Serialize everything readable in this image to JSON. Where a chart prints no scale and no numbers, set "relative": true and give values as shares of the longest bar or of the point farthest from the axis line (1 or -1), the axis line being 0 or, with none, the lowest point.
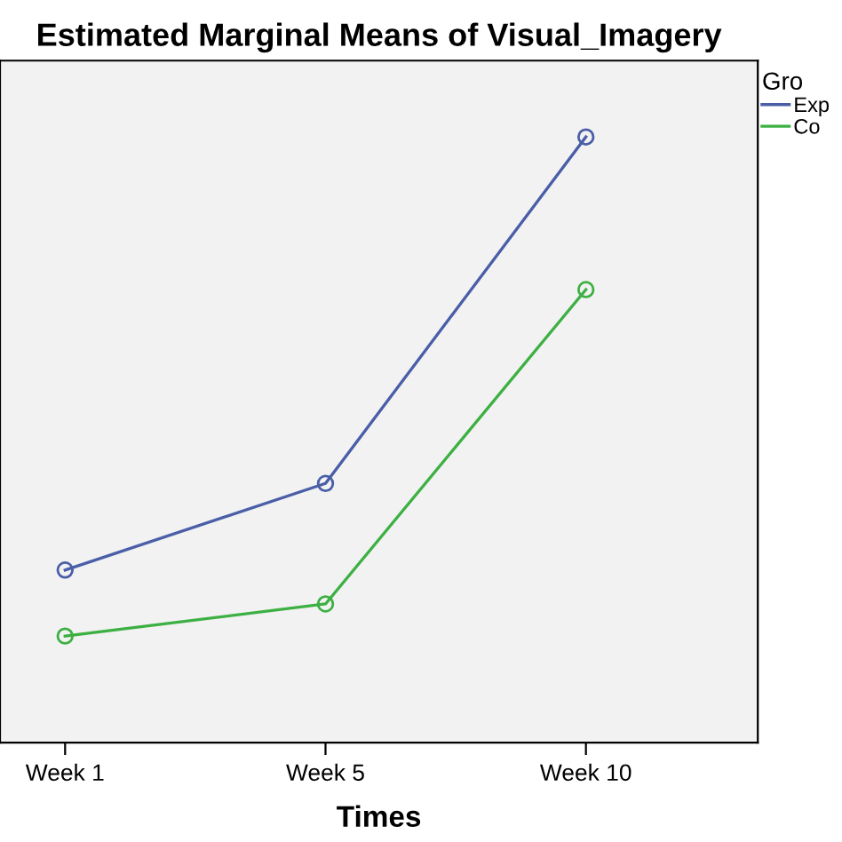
{
  "chart_data": {
    "type": "line",
    "title": "Estimated Marginal Means of Visual_Imagery",
    "xlabel": "Times",
    "categories": [
      "Week 1",
      "Week 5",
      "Week 10"
    ],
    "relative": true,
    "tick_labels": "x",
    "legend": "right",
    "legend_title": "Gro",
    "marker": "circle",
    "line_style": "solid",
    "grid": false,
    "series": [
      {
        "name": "Exp",
        "color": "#4a5ea8",
        "values": [
          0.285,
          0.428,
          1
        ]
      },
      {
        "name": "Co",
        "color": "#3cb043",
        "values": [
          0.176,
          0.229,
          0.748
        ]
      }
    ]
  }
}
